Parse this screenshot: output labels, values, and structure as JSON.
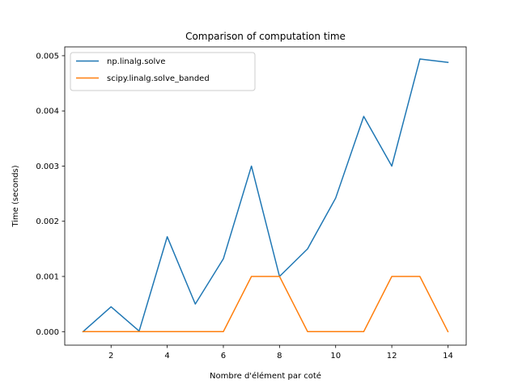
{
  "chart_data": {
    "type": "line",
    "title": "Comparison of computation time",
    "xlabel": "Nombre d'élément par coté",
    "ylabel": "Time (seconds)",
    "xlim": [
      0.35,
      14.65
    ],
    "ylim": [
      -0.000245,
      0.00516
    ],
    "xticks": [
      2,
      4,
      6,
      8,
      10,
      12,
      14
    ],
    "xtick_labels": [
      "2",
      "4",
      "6",
      "8",
      "10",
      "12",
      "14"
    ],
    "yticks": [
      0,
      0.001,
      0.002,
      0.003,
      0.004,
      0.005
    ],
    "ytick_labels": [
      "0.000",
      "0.001",
      "0.002",
      "0.003",
      "0.004",
      "0.005"
    ],
    "grid": false,
    "legend_position": "upper-left",
    "x": [
      1,
      2,
      3,
      4,
      5,
      6,
      7,
      8,
      9,
      10,
      11,
      12,
      13,
      14
    ],
    "series": [
      {
        "name": "np.linalg.solve",
        "color": "#1f77b4",
        "values": [
          0,
          0.00045,
          1e-05,
          0.00172,
          0.0005,
          0.00132,
          0.003,
          0.001,
          0.0015,
          0.00242,
          0.0039,
          0.003,
          0.00494,
          0.00488
        ]
      },
      {
        "name": "scipy.linalg.solve_banded",
        "color": "#ff7f0e",
        "values": [
          0,
          0,
          0,
          0,
          0,
          0,
          0.001,
          0.001,
          0,
          0,
          0,
          0.001,
          0.001,
          0
        ]
      }
    ]
  }
}
